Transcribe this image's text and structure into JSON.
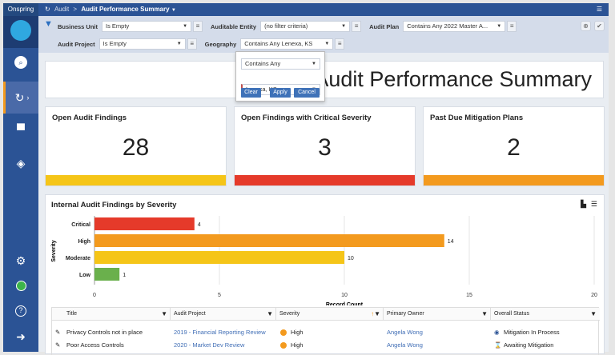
{
  "app": {
    "brand": "Onspring"
  },
  "breadcrumb": {
    "parent": "Audit",
    "separator": ">",
    "current": "Audit Performance Summary"
  },
  "filters": {
    "business_unit": {
      "label": "Business Unit",
      "value": "Is Empty"
    },
    "auditable_entity": {
      "label": "Auditable Entity",
      "value": "(no filter criteria)"
    },
    "audit_plan": {
      "label": "Audit Plan",
      "value": "Contains Any 2022 Master A..."
    },
    "audit_project": {
      "label": "Audit Project",
      "value": "Is Empty"
    },
    "geography": {
      "label": "Geography",
      "value": "Contains Any Lenexa, KS"
    }
  },
  "popup": {
    "operator": "Contains Any",
    "value": "Lenexa, KS",
    "clear": "Clear",
    "apply": "Apply",
    "cancel": "Cancel"
  },
  "dashboard": {
    "title": "Audit Performance Summary"
  },
  "kpis": [
    {
      "title": "Open Audit Findings",
      "value": "28",
      "color": "#f5c518"
    },
    {
      "title": "Open Findings with Critical Severity",
      "value": "3",
      "color": "#e53a2a"
    },
    {
      "title": "Past Due Mitigation Plans",
      "value": "2",
      "color": "#f39a1e"
    }
  ],
  "chart_data": {
    "type": "bar",
    "orientation": "horizontal",
    "title": "Internal Audit Findings by Severity",
    "categories": [
      "Critical",
      "High",
      "Moderate",
      "Low"
    ],
    "values": [
      4,
      14,
      10,
      1
    ],
    "colors": [
      "#e53a2a",
      "#f39a1e",
      "#f5c518",
      "#6ab04c"
    ],
    "xlabel": "Record Count",
    "ylabel": "Severity",
    "xlim": [
      0,
      20
    ],
    "xticks": [
      0,
      5,
      10,
      15,
      20
    ]
  },
  "table": {
    "columns": [
      "Title",
      "Audit Project",
      "Severity",
      "Primary Owner",
      "Overall Status"
    ],
    "rows": [
      {
        "title": "Privacy Controls not in place",
        "project": "2019 - Financial Reporting Review",
        "severity": "High",
        "owner": "Angela Wong",
        "status": "Mitigation In Process"
      },
      {
        "title": "Poor Access Controls",
        "project": "2020 - Market Dev Review",
        "severity": "High",
        "owner": "Angela Wong",
        "status": "Awaiting Mitigation"
      }
    ]
  }
}
